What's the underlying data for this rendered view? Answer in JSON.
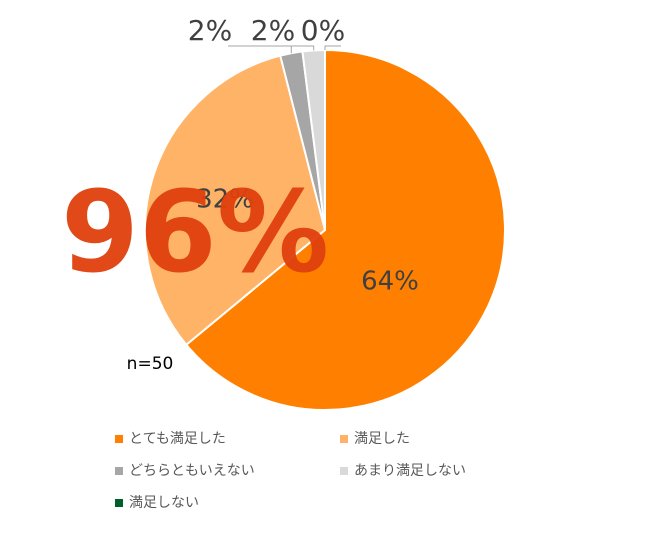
{
  "chart_data": {
    "type": "pie",
    "categories": [
      "とても満足した",
      "満足した",
      "どちらともいえない",
      "あまり満足しない",
      "満足しない"
    ],
    "values": [
      64,
      32,
      2,
      2,
      0
    ],
    "value_labels": [
      "64%",
      "32%",
      "2%",
      "2%",
      "0%"
    ],
    "colors": [
      "#ff8000",
      "#ffb366",
      "#a6a6a6",
      "#d9d9d9",
      "#00602a"
    ],
    "annotations": [
      "96%",
      "n=50"
    ]
  }
}
